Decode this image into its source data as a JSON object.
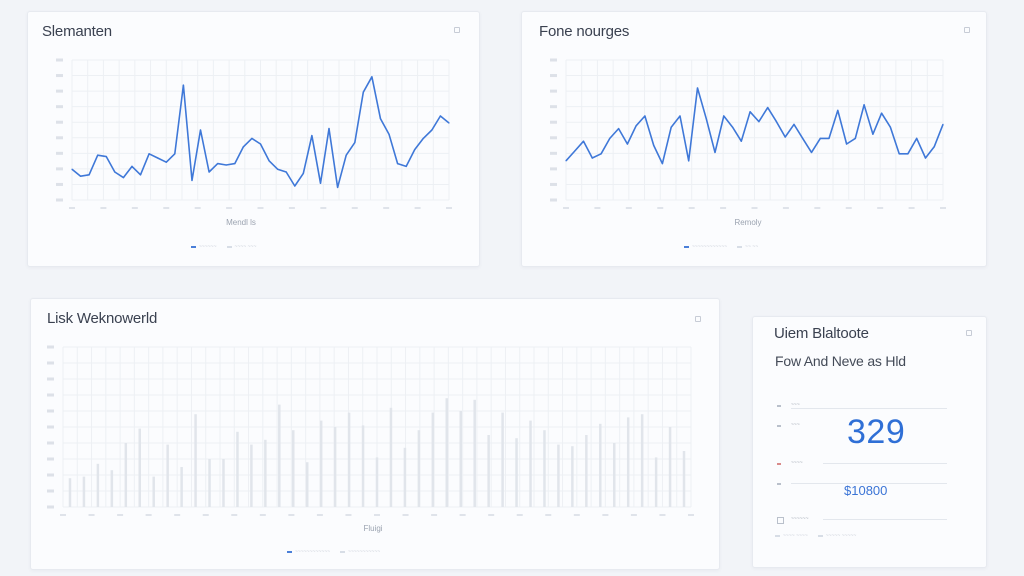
{
  "colors": {
    "accent": "#3f78d8",
    "grid": "#edf0f4",
    "bar": "#e1e5eb"
  },
  "cards": {
    "chart1": {
      "title": "Slemanten",
      "menu_icon": "menu-square-icon",
      "xlabel": "Mendl ls",
      "legend": [
        "~~~~~~",
        "~~~~ ~~~"
      ]
    },
    "chart2": {
      "title": "Fone nourges",
      "menu_icon": "menu-square-icon",
      "xlabel": "Remoly",
      "legend": [
        "~~~~~~~~~~~~",
        "~~ ~~"
      ]
    },
    "chart3": {
      "title": "Lisk Weknowerld",
      "menu_icon": "menu-square-icon",
      "xlabel": "Fluigi",
      "legend": [
        "~~~~~~~~~~~~",
        "~~~~~~~~~~~"
      ]
    },
    "stats": {
      "title": "Uiem Blaltoote",
      "subtitle": "Fow And Neve as Hld",
      "menu_icon": "menu-square-icon",
      "rows": [
        {
          "label": "~~~",
          "value": ""
        },
        {
          "label": "~~~",
          "value": "329"
        },
        {
          "label": "~~~~",
          "value": ""
        },
        {
          "label": "",
          "value": "$10800"
        },
        {
          "label": "~~~~~~",
          "value": ""
        }
      ],
      "footer": [
        "~~~~ ~~~~",
        "~~~~~ ~~~~~"
      ]
    }
  },
  "chart_data": [
    {
      "type": "line",
      "series": [
        {
          "values": [
            22,
            17,
            18,
            32,
            31,
            20,
            16,
            24,
            18,
            33,
            30,
            27,
            33,
            82,
            14,
            50,
            20,
            26,
            25,
            26,
            38,
            44,
            40,
            28,
            22,
            20,
            10,
            19,
            46,
            12,
            51,
            9,
            32,
            41,
            77,
            88,
            58,
            47,
            26,
            24,
            36,
            44,
            50,
            60,
            55
          ]
        }
      ],
      "ylim": [
        0,
        100
      ]
    },
    {
      "type": "line",
      "series": [
        {
          "values": [
            28,
            35,
            42,
            30,
            33,
            44,
            51,
            40,
            53,
            60,
            39,
            26,
            52,
            60,
            28,
            80,
            58,
            34,
            60,
            52,
            42,
            63,
            56,
            66,
            56,
            45,
            54,
            44,
            34,
            44,
            44,
            64,
            40,
            44,
            68,
            47,
            62,
            52,
            33,
            33,
            44,
            30,
            38,
            54
          ]
        }
      ],
      "ylim": [
        0,
        100
      ]
    },
    {
      "type": "bar",
      "values": [
        18,
        19,
        27,
        23,
        40,
        49,
        19,
        39,
        25,
        58,
        30,
        30,
        47,
        39,
        42,
        64,
        48,
        28,
        54,
        50,
        59,
        51,
        31,
        62,
        37,
        48,
        59,
        68,
        60,
        67,
        45,
        59,
        43,
        54,
        48,
        39,
        38,
        45,
        52,
        40,
        56,
        58,
        31,
        50,
        35
      ],
      "ylim": [
        0,
        100
      ]
    }
  ]
}
